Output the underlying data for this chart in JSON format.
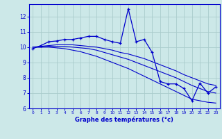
{
  "xlabel": "Graphe des températures (°c)",
  "bg_color": "#cce8e8",
  "grid_color": "#aacccc",
  "line_color": "#0000cc",
  "x_hours": [
    0,
    1,
    2,
    3,
    4,
    5,
    6,
    7,
    8,
    9,
    10,
    11,
    12,
    13,
    14,
    15,
    16,
    17,
    18,
    19,
    20,
    21,
    22,
    23
  ],
  "series1": [
    9.9,
    10.1,
    10.35,
    10.4,
    10.5,
    10.5,
    10.6,
    10.7,
    10.7,
    10.5,
    10.35,
    10.25,
    12.5,
    10.35,
    10.5,
    9.65,
    7.75,
    7.6,
    7.6,
    7.3,
    6.5,
    7.65,
    7.0,
    7.4
  ],
  "series2": [
    10.0,
    10.05,
    10.1,
    10.15,
    10.15,
    10.15,
    10.1,
    10.05,
    10.0,
    9.9,
    9.8,
    9.65,
    9.55,
    9.4,
    9.25,
    9.05,
    8.85,
    8.65,
    8.45,
    8.2,
    8.0,
    7.8,
    7.6,
    7.5
  ],
  "series3": [
    10.0,
    10.0,
    10.05,
    10.05,
    10.05,
    10.0,
    9.95,
    9.9,
    9.8,
    9.65,
    9.5,
    9.35,
    9.2,
    9.0,
    8.8,
    8.6,
    8.4,
    8.2,
    8.0,
    7.75,
    7.5,
    7.3,
    7.1,
    7.0
  ],
  "series4": [
    10.0,
    10.0,
    10.0,
    9.95,
    9.9,
    9.8,
    9.7,
    9.55,
    9.4,
    9.2,
    9.0,
    8.8,
    8.6,
    8.35,
    8.1,
    7.85,
    7.6,
    7.35,
    7.1,
    6.85,
    6.6,
    6.5,
    6.4,
    6.35
  ],
  "ylim": [
    6,
    12.8
  ],
  "xlim": [
    -0.5,
    23.5
  ],
  "yticks": [
    6,
    7,
    8,
    9,
    10,
    11,
    12
  ],
  "xticks": [
    0,
    1,
    2,
    3,
    4,
    5,
    6,
    7,
    8,
    9,
    10,
    11,
    12,
    13,
    14,
    15,
    16,
    17,
    18,
    19,
    20,
    21,
    22,
    23
  ]
}
